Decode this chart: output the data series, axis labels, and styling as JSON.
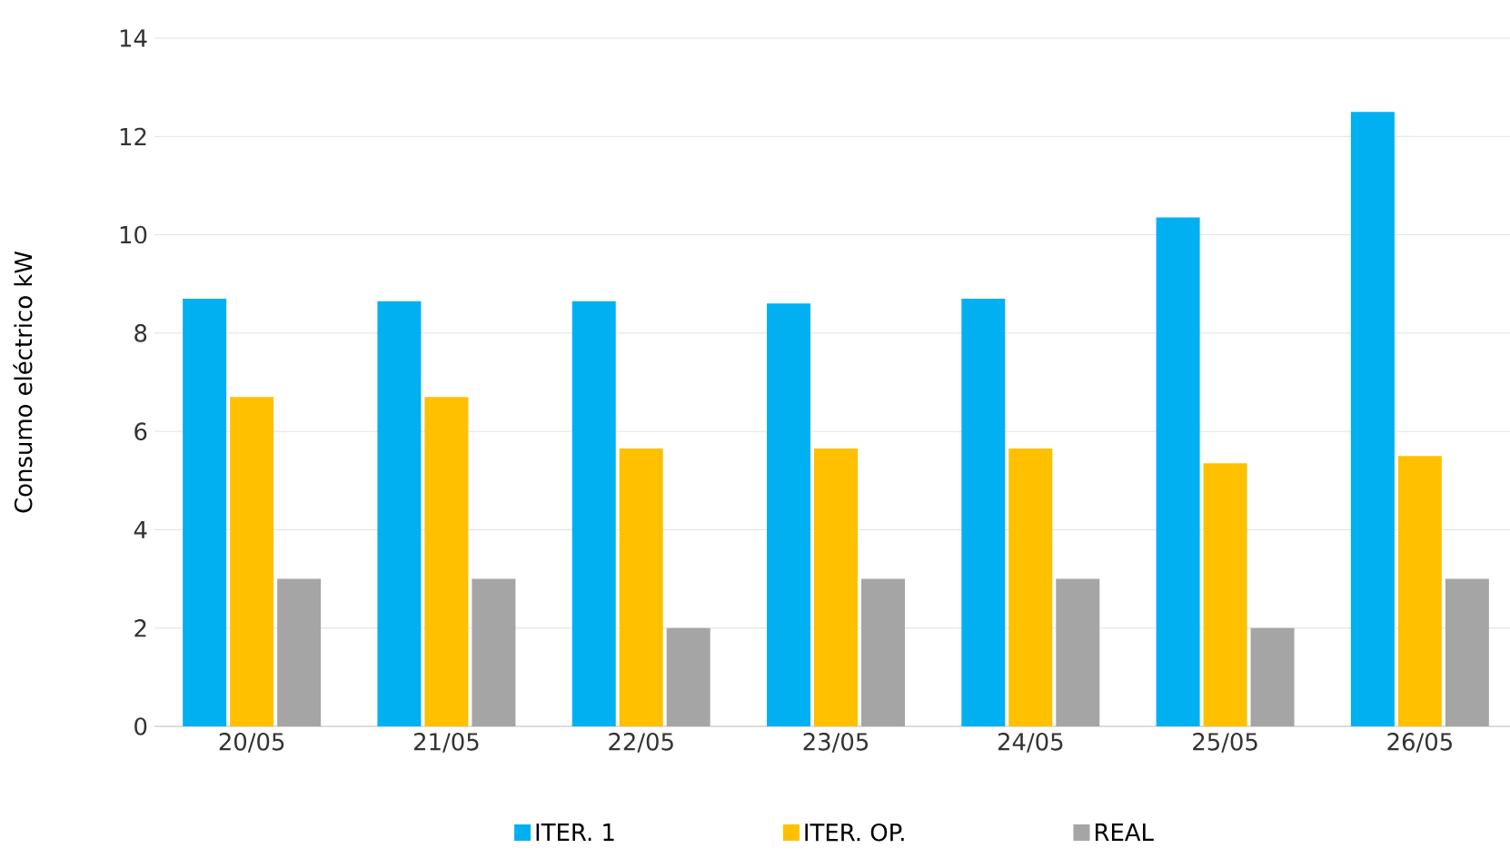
{
  "chart_data": {
    "type": "bar",
    "ylabel": "Consumo eléctrico kW",
    "categories": [
      "20/05",
      "21/05",
      "22/05",
      "23/05",
      "24/05",
      "25/05",
      "26/05"
    ],
    "series": [
      {
        "name": "ITER. 1",
        "color": "#00b0f0",
        "values": [
          8.7,
          8.65,
          8.65,
          8.6,
          8.7,
          10.35,
          12.5
        ]
      },
      {
        "name": "ITER. OP.",
        "color": "#ffc000",
        "values": [
          6.7,
          6.7,
          5.65,
          5.65,
          5.65,
          5.35,
          5.5
        ]
      },
      {
        "name": "REAL",
        "color": "#a5a5a5",
        "values": [
          3,
          3,
          2,
          3,
          3,
          2,
          3
        ]
      }
    ],
    "ylim": [
      0,
      14
    ],
    "yticks": [
      0,
      2,
      4,
      6,
      8,
      10,
      12,
      14
    ],
    "grid": "y",
    "legend": "bottom"
  }
}
